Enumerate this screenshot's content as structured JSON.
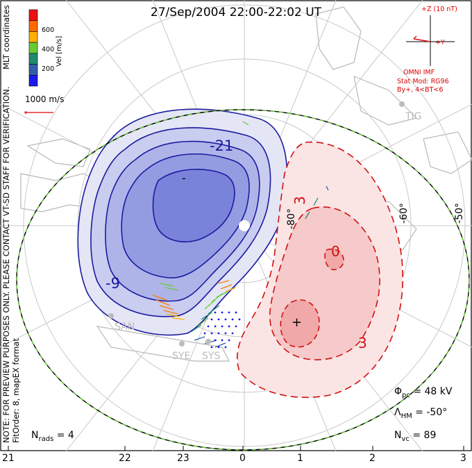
{
  "title": "27/Sep/2004 22:00-22:02 UT",
  "side_notes": {
    "coords": "MLT coordinates",
    "preview": "NOTE: FOR PREVIEW PURPOSES ONLY. PLEASE CONTACT VT-SD STAFF FOR VERIFICATION.",
    "fit": "FitOrder: 8, mapEX format"
  },
  "colorbar": {
    "label": "Vel [m/s]",
    "ticks": [
      "600",
      "400",
      "200"
    ],
    "colors": [
      "#ee1111",
      "#ff6a00",
      "#ffb000",
      "#66cc33",
      "#1f8a70",
      "#2f5fa8",
      "#1a1aee"
    ]
  },
  "scale_vector": {
    "label": "1000 m/s",
    "color": "#e23030"
  },
  "imf": {
    "z_label": "+Z (10 nT)",
    "y_label": "+Y",
    "source": "OMNI IMF",
    "model_line1": "Stat Mod: RG96",
    "model_line2": "By+, 4<BT<6",
    "color": "#dd1111"
  },
  "latitude_labels": [
    "-80°",
    "-60°",
    "-50°"
  ],
  "contour_labels": {
    "neg_minus21": "-21",
    "neg_minus9": "-9",
    "neg_min_marker": "-",
    "pos_3_top": "3",
    "pos_0_center": "0",
    "pos_3_bottom": "3",
    "pos_max_marker": "+"
  },
  "stations": [
    "TIG",
    "SAN",
    "SYE",
    "SYS"
  ],
  "stats": {
    "phi_pc_sym": "Φ",
    "phi_pc_sub": "pc",
    "phi_pc_val": "= 48 kV",
    "lambda_sym": "Λ",
    "lambda_sub": "HM",
    "lambda_val": "= -50°",
    "nvc_sym": "N",
    "nvc_sub": "vc",
    "nvc_val": "= 89",
    "nrads_sym": "N",
    "nrads_sub": "rads",
    "nrads_val": "= 4"
  },
  "mlt_ticks": [
    "21",
    "22",
    "23",
    "0",
    "1",
    "2",
    "3"
  ],
  "colors": {
    "negative_contour": "#1a1aa0",
    "positive_contour": "#d01010",
    "boundary_dash": "#66cc33"
  }
}
